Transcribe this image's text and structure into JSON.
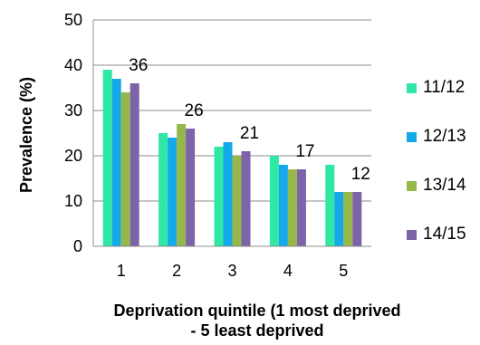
{
  "chart_data": {
    "type": "bar",
    "title": "",
    "xlabel": "Deprivation quintile (1 most deprived - 5 least deprived",
    "xlabel_lines": [
      "Deprivation quintile (1 most deprived",
      "- 5 least deprived"
    ],
    "ylabel": "Prevalence (%)",
    "ylim": [
      0,
      50
    ],
    "yticks": [
      "0",
      "10",
      "20",
      "30",
      "40",
      "50"
    ],
    "grid": true,
    "legend_position": "right",
    "categories": [
      "1",
      "2",
      "3",
      "4",
      "5"
    ],
    "series": [
      {
        "name": "11/12",
        "color": "#2EE8A4",
        "values": [
          39,
          25,
          22,
          20,
          18
        ]
      },
      {
        "name": "12/13",
        "color": "#14A9E9",
        "values": [
          37,
          24,
          23,
          18,
          12
        ]
      },
      {
        "name": "13/14",
        "color": "#96B84A",
        "values": [
          34,
          27,
          20,
          17,
          12
        ]
      },
      {
        "name": "14/15",
        "color": "#7D63A8",
        "values": [
          36,
          26,
          21,
          17,
          12
        ]
      }
    ],
    "data_labels": [
      "36",
      "26",
      "21",
      "17",
      "12"
    ]
  }
}
